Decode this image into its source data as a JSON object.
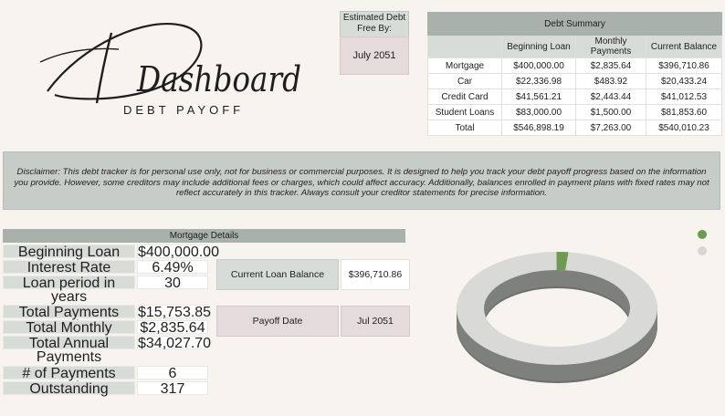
{
  "header": {
    "logo_text": "Dashboard",
    "subtitle": "DEBT PAYOFF"
  },
  "debt_free": {
    "label": "Estimated Debt Free By:",
    "value": "July 2051"
  },
  "summary": {
    "title": "Debt Summary",
    "columns": [
      "",
      "Beginning Loan",
      "Monthly Payments",
      "Current Balance"
    ],
    "rows": [
      [
        "Mortgage",
        "$400,000.00",
        "$2,835.64",
        "$396,710.86"
      ],
      [
        "Car",
        "$22,336.98",
        "$483.92",
        "$20,433.24"
      ],
      [
        "Credit Card",
        "$41,561.21",
        "$2,443.44",
        "$41,012.53"
      ],
      [
        "Student Loans",
        "$83,000.00",
        "$1,500.00",
        "$81,853.60"
      ],
      [
        "Total",
        "$546,898.19",
        "$7,263.00",
        "$540,010.23"
      ]
    ]
  },
  "disclaimer": "Disclaimer: This debt tracker is for personal use only, not for business or commercial purposes. It is designed to help you track your debt payoff progress based on the information you provide. However, some creditors may include additional fees or charges, which could affect accuracy. Additionally, balances enrolled in payment plans with fixed rates may not reflect accurately in this tracker. Always consult your creditor statements for precise information.",
  "mortgage": {
    "title": "Mortgage Details",
    "beginning_loan_label": "Beginning Loan Amount",
    "beginning_loan_value": "$400,000.00",
    "interest_rate_label": "Interest Rate",
    "interest_rate_value": "6.49%",
    "loan_period_label": "Loan period in years",
    "loan_period_value": "30",
    "total_payments_label": "Total Payments Made",
    "total_payments_value": "$15,753.85",
    "monthly_payments_label": "Total Monthly Payments",
    "monthly_payments_value": "$2,835.64",
    "annual_payments_label": "Total Annual Payments",
    "annual_payments_value": "$34,027.70",
    "num_payments_label": "# of Payments Made",
    "num_payments_value": "6",
    "outstanding_label": "Outstanding",
    "outstanding_value": "317",
    "current_balance_label": "Current Loan Balance",
    "current_balance_value": "$396,710.86",
    "payoff_date_label": "Payoff Date",
    "payoff_date_value": "Jul 2051"
  },
  "donut": {
    "paid_fraction": 0.019,
    "paid_color": "#6f9a52",
    "remaining_color": "#d9d9d7",
    "legend_paid_color": "#6f9a52",
    "legend_remaining_color": "#d6d6d4"
  }
}
